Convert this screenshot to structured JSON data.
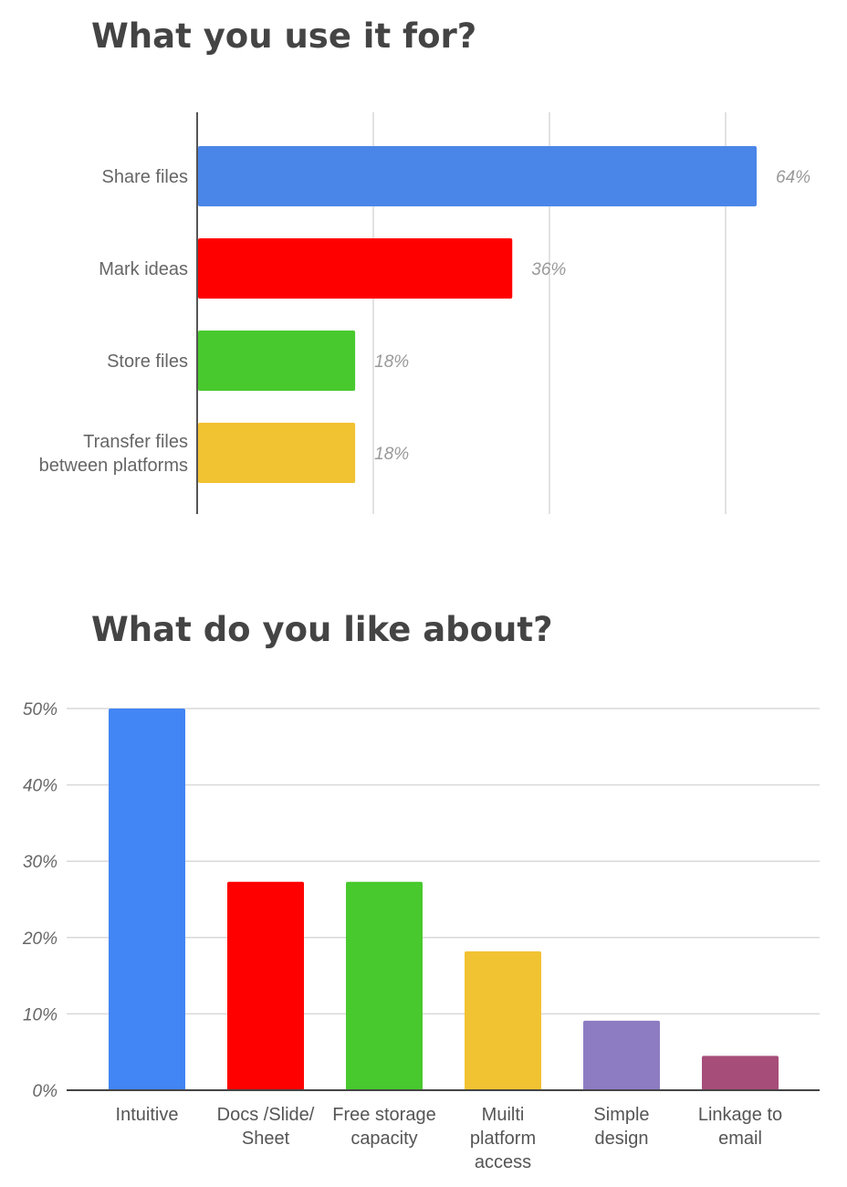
{
  "chart_data": [
    {
      "type": "bar",
      "orientation": "horizontal",
      "title": "What you use it for?",
      "categories": [
        "Share files",
        "Mark ideas",
        "Store files",
        "Transfer files\nbetween platforms"
      ],
      "values": [
        64,
        36,
        18,
        18
      ],
      "value_labels": [
        "64%",
        "36%",
        "18%",
        "18%"
      ],
      "colors": [
        "#4a86e8",
        "#ff0000",
        "#48c92e",
        "#f1c232"
      ],
      "xlim": [
        0,
        80
      ],
      "grid": true,
      "legend": "none"
    },
    {
      "type": "bar",
      "orientation": "vertical",
      "title": "What do you like about?",
      "categories": [
        "Intuitive",
        "Docs /Slide/\nSheet",
        "Free storage\ncapacity",
        "Muilti\nplatform\naccess",
        "Simple\ndesign",
        "Linkage to\nemail"
      ],
      "values": [
        50,
        27.3,
        27.3,
        18.2,
        9.1,
        4.5
      ],
      "colors": [
        "#4285f4",
        "#ff0000",
        "#48c92e",
        "#f1c232",
        "#8e7cc3",
        "#a64d79"
      ],
      "ylim": [
        0,
        50
      ],
      "yticks": [
        "0%",
        "10%",
        "20%",
        "30%",
        "40%",
        "50%"
      ],
      "grid": true,
      "legend": "none"
    }
  ]
}
